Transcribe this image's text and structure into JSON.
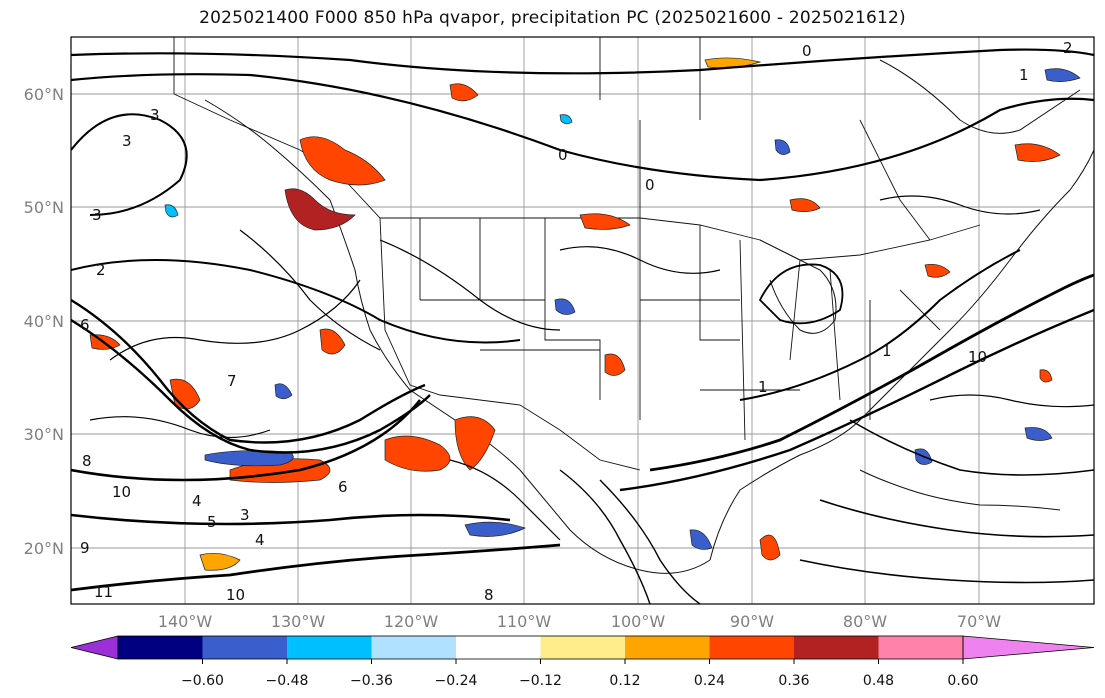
{
  "title": "2025021400 F000 850 hPa qvapor, precipitation PC (2025021600 - 2025021612)",
  "map": {
    "lat_labels": [
      "60°N",
      "50°N",
      "40°N",
      "30°N",
      "20°N"
    ],
    "lon_labels": [
      "140°W",
      "130°W",
      "120°W",
      "110°W",
      "100°W",
      "90°W",
      "80°W",
      "70°W"
    ],
    "contour_labels": [
      "2",
      "1",
      "0",
      "3",
      "3",
      "3",
      "2",
      "0",
      "0",
      "6",
      "7",
      "8",
      "10",
      "4",
      "5",
      "3",
      "6",
      "4",
      "8",
      "10",
      "11",
      "1",
      "1",
      "9",
      "10"
    ]
  },
  "colorbar": {
    "tick_labels": [
      "−0.60",
      "−0.48",
      "−0.36",
      "−0.24",
      "−0.12",
      "0.12",
      "0.24",
      "0.36",
      "0.48",
      "0.60"
    ],
    "colors": [
      "#9b30d9",
      "#000080",
      "#3a5fcd",
      "#00bfff",
      "#b0e2ff",
      "#ffffff",
      "#ffec8b",
      "#ffa500",
      "#ff4500",
      "#b22222",
      "#ff82ab",
      "#ee82ee"
    ]
  }
}
